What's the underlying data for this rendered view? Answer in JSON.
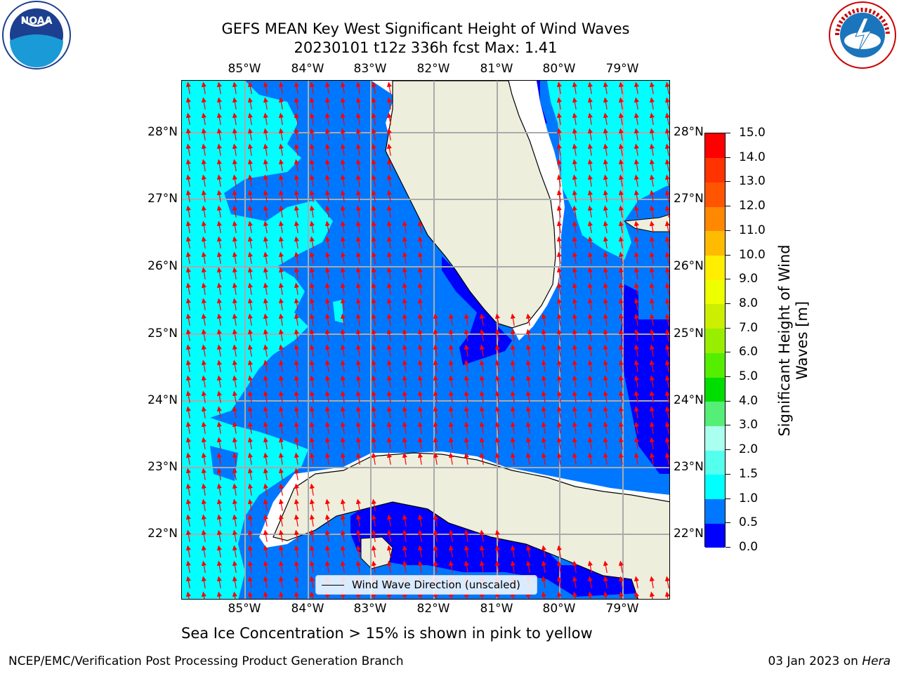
{
  "header": {
    "title_line1": "GEFS MEAN Key West Significant Height of Wind Waves",
    "title_line2": "20230101 t12z 336h fcst   Max: 1.41"
  },
  "map": {
    "lon_labels": [
      "85°W",
      "84°W",
      "83°W",
      "82°W",
      "81°W",
      "80°W",
      "79°W"
    ],
    "lat_labels": [
      "28°N",
      "27°N",
      "26°N",
      "25°N",
      "24°N",
      "23°N",
      "22°N"
    ],
    "legend_label": "Wind Wave Direction (unscaled)",
    "colors": {
      "land": "#eeeedd",
      "level_0": "#0000ff",
      "level_05": "#0077ff",
      "level_10": "#00ffff",
      "arrow": "#ff0000",
      "grid": "#aaaaaa"
    }
  },
  "colorbar": {
    "title_line1": "Significant Height of Wind",
    "title_line2": "Waves [m]",
    "ticks": [
      "0.0",
      "0.5",
      "1.0",
      "1.5",
      "2.0",
      "3.0",
      "4.0",
      "5.0",
      "6.0",
      "7.0",
      "8.0",
      "9.0",
      "10.0",
      "11.0",
      "12.0",
      "13.0",
      "14.0",
      "15.0"
    ],
    "colors": [
      "#0000ff",
      "#0077ff",
      "#00ffff",
      "#55ffee",
      "#aaffee",
      "#55ee77",
      "#00dd00",
      "#55ee00",
      "#99ee00",
      "#ccee00",
      "#eeff00",
      "#ffee00",
      "#ffbb00",
      "#ff8800",
      "#ff5500",
      "#ff3300",
      "#ff0000"
    ]
  },
  "footer": {
    "note": "Sea Ice Concentration > 15% is shown in pink to yellow",
    "left": "NCEP/EMC/Verification Post Processing Product Generation Branch",
    "date": "03 Jan 2023 on ",
    "host": "Hera"
  },
  "logos": {
    "noaa_text": "NOAA",
    "nws_text": "NATIONAL WEATHER SERVICE"
  }
}
